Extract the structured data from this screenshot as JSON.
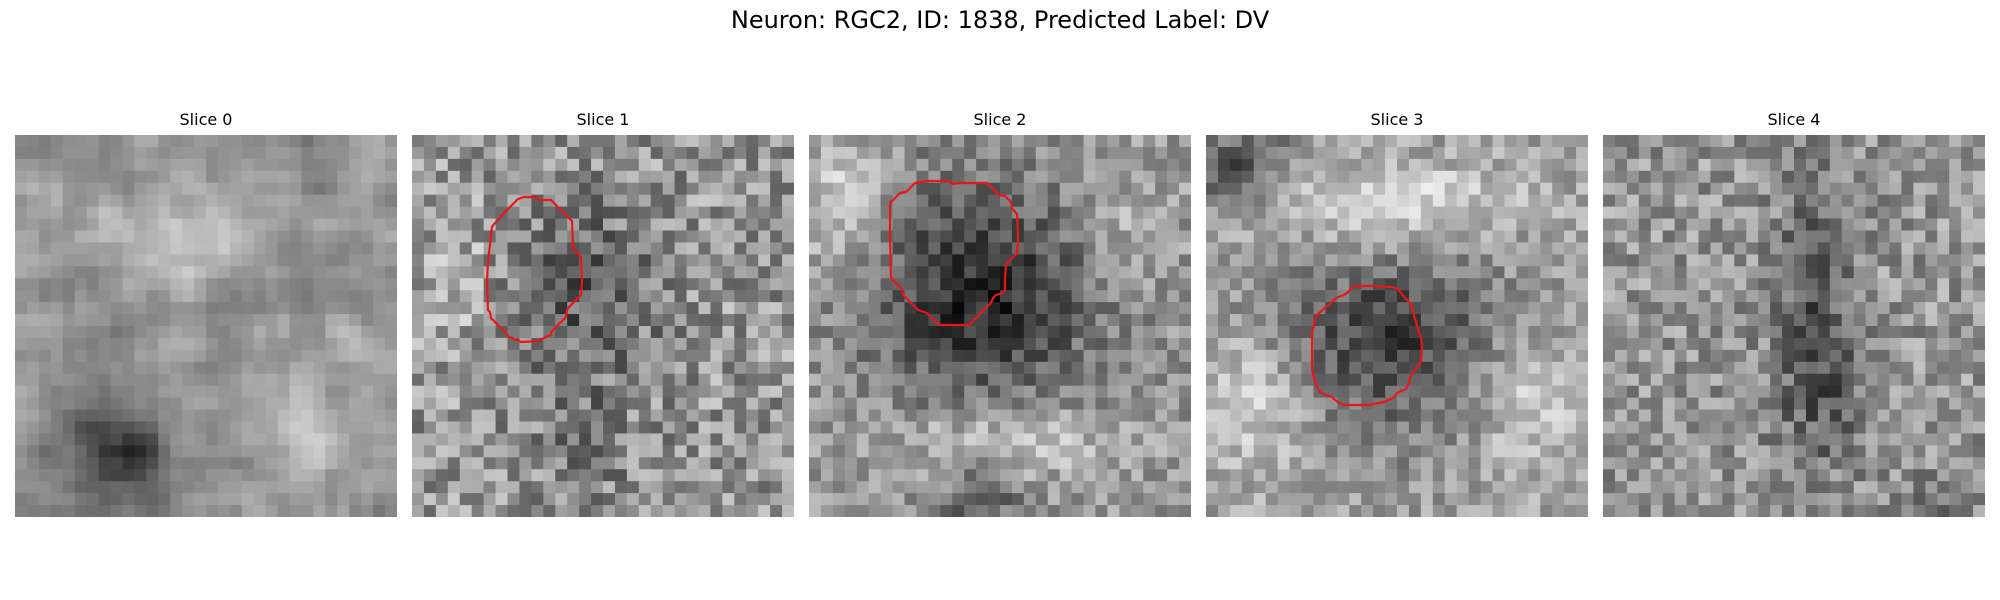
{
  "figure": {
    "title": "Neuron: RGC2, ID: 1838, Predicted Label: DV"
  },
  "panels": [
    {
      "title": "Slice 0",
      "has_contour": false,
      "pattern": "blurry mottled grayscale texture, dark spot bottom-left"
    },
    {
      "title": "Slice 1",
      "has_contour": true,
      "pattern": "noisy grainy texture, darker round cell region center"
    },
    {
      "title": "Slice 2",
      "has_contour": true,
      "pattern": "dark round cell body center, bright rim left and bottom"
    },
    {
      "title": "Slice 3",
      "has_contour": true,
      "pattern": "dark region lower center, bright band at top"
    },
    {
      "title": "Slice 4",
      "has_contour": false,
      "pattern": "noisy texture with dark vertical band center-right"
    }
  ],
  "colors": {
    "contour": "#e8161b",
    "background": "#ffffff"
  }
}
